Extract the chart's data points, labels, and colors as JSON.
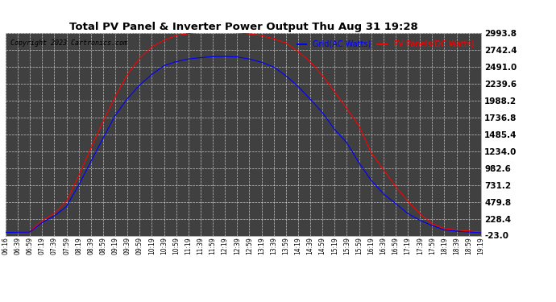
{
  "title": "Total PV Panel & Inverter Power Output Thu Aug 31 19:28",
  "copyright": "Copyright 2023 Cartronics.com",
  "legend_grid": "Grid(AC Watts)",
  "legend_pv": "PV Panels(DC Watts)",
  "grid_color": "blue",
  "pv_color": "red",
  "background_color": "#ffffff",
  "plot_bg": "#404040",
  "y_ticks": [
    -23.0,
    228.4,
    479.8,
    731.2,
    982.6,
    1234.0,
    1485.4,
    1736.8,
    1988.2,
    2239.6,
    2491.0,
    2742.4,
    2993.8
  ],
  "y_min": -23.0,
  "y_max": 2993.8,
  "x_labels": [
    "06:16",
    "06:39",
    "06:59",
    "07:19",
    "07:39",
    "07:59",
    "08:19",
    "08:39",
    "08:59",
    "09:19",
    "09:39",
    "09:59",
    "10:19",
    "10:39",
    "10:59",
    "11:19",
    "11:39",
    "11:59",
    "12:19",
    "12:39",
    "12:59",
    "13:19",
    "13:39",
    "13:59",
    "14:19",
    "14:39",
    "14:59",
    "15:19",
    "15:39",
    "15:59",
    "16:19",
    "16:39",
    "16:59",
    "17:19",
    "17:39",
    "17:59",
    "18:19",
    "18:39",
    "18:59",
    "19:19"
  ],
  "pv_data": [
    30,
    32,
    35,
    200,
    310,
    490,
    870,
    1280,
    1680,
    2050,
    2380,
    2620,
    2790,
    2890,
    2960,
    2990,
    3010,
    3020,
    3015,
    3000,
    2985,
    2960,
    2910,
    2850,
    2720,
    2570,
    2360,
    2120,
    1870,
    1610,
    1210,
    960,
    710,
    490,
    300,
    155,
    80,
    60,
    45,
    30
  ],
  "grid_data": [
    25,
    27,
    30,
    170,
    270,
    410,
    730,
    1080,
    1430,
    1770,
    2020,
    2220,
    2380,
    2510,
    2570,
    2610,
    2630,
    2645,
    2648,
    2640,
    2610,
    2560,
    2490,
    2360,
    2200,
    2010,
    1810,
    1560,
    1360,
    1060,
    800,
    600,
    455,
    305,
    205,
    125,
    62,
    42,
    30,
    20
  ]
}
